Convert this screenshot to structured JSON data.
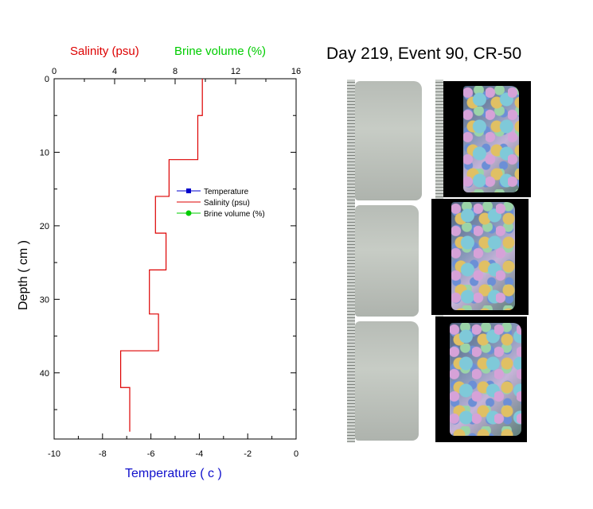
{
  "chart_data": {
    "type": "line",
    "title": "Day 219, Event 90, CR-50",
    "top_axis_labels": [
      {
        "text": "Salinity (psu)",
        "color": "#dd0000"
      },
      {
        "text": "Brine volume (%)",
        "color": "#00cc00"
      }
    ],
    "top_ticks": [
      "0",
      "4",
      "8",
      "12",
      "16"
    ],
    "top_xlim": [
      0,
      16
    ],
    "bottom_xlabel": "Temperature ( c )",
    "bottom_ticks": [
      "-10",
      "-8",
      "-6",
      "-4",
      "-2",
      "0"
    ],
    "bottom_xlim": [
      -10,
      0
    ],
    "ylabel": "Depth ( cm )",
    "y_ticks": [
      "0",
      "10",
      "20",
      "30",
      "40"
    ],
    "ylim": [
      0,
      49
    ],
    "y_inverted": true,
    "legend": {
      "placement": "center-right",
      "entries": [
        {
          "label": "Temperature",
          "color": "#0000cc"
        },
        {
          "label": "Salinity (psu)",
          "color": "#dd0000"
        },
        {
          "label": "Brine volume (%)",
          "color": "#00cc00"
        }
      ]
    },
    "series": [
      {
        "name": "Salinity (psu)",
        "color": "#dd0000",
        "step_profile": [
          {
            "top": 0,
            "bottom": 5,
            "value": 9.8
          },
          {
            "top": 5,
            "bottom": 11,
            "value": 9.5
          },
          {
            "top": 11,
            "bottom": 16,
            "value": 7.6
          },
          {
            "top": 16,
            "bottom": 21,
            "value": 6.7
          },
          {
            "top": 21,
            "bottom": 26,
            "value": 7.4
          },
          {
            "top": 26,
            "bottom": 32,
            "value": 6.3
          },
          {
            "top": 32,
            "bottom": 37,
            "value": 6.9
          },
          {
            "top": 37,
            "bottom": 42,
            "value": 4.4
          },
          {
            "top": 42,
            "bottom": 48,
            "value": 5.0
          }
        ]
      }
    ]
  }
}
